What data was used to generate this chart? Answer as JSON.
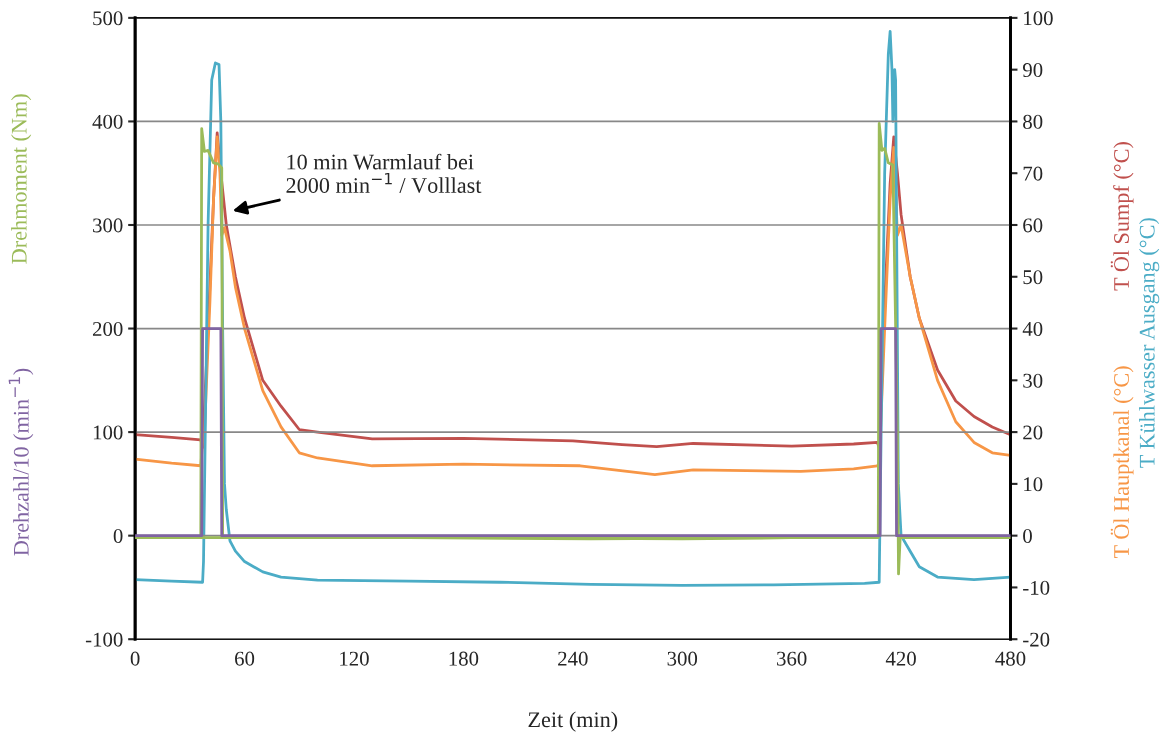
{
  "chart_data": {
    "type": "line",
    "xlabel": "Zeit (min)",
    "xlim": [
      0,
      480
    ],
    "xticks": [
      0,
      60,
      120,
      180,
      240,
      300,
      360,
      420,
      480
    ],
    "ylim": [
      -100,
      500
    ],
    "yticks": [
      -100,
      0,
      100,
      200,
      300,
      400,
      500
    ],
    "y2lim": [
      -20,
      100
    ],
    "y2ticks": [
      -20,
      -10,
      0,
      10,
      20,
      30,
      40,
      50,
      60,
      70,
      80,
      90,
      100
    ],
    "grid": "y",
    "legend": false,
    "annotations": [
      {
        "text": "10 min Warmlauf bei\n2000 min$^{−1}$ / Volllast",
        "x": 52,
        "y": 313
      }
    ],
    "series": [
      {
        "name": "Drehmoment (Nm)",
        "color": "#9bbb59",
        "x": [
          0,
          100,
          200,
          300,
          360,
          36,
          36.5,
          38,
          40,
          43,
          45.5,
          47.5,
          48,
          60,
          150,
          250,
          350,
          407.5,
          408,
          409.5,
          411,
          413,
          415.5,
          418,
          418.6,
          419.5,
          420.5,
          440,
          480
        ],
        "values": [
          -2,
          -2,
          -2,
          -3,
          -2,
          -2,
          393,
          371,
          372,
          360,
          359,
          355,
          -2,
          -2,
          -2,
          -3,
          -2,
          -2,
          398,
          372,
          374,
          360,
          358,
          100,
          -37,
          -2,
          -2,
          -2,
          -2
        ]
      },
      {
        "name": "Drehzahl/10 (min$^{−1}$)",
        "color": "#8064a2",
        "x": [
          0,
          36.5,
          37,
          47,
          47.5,
          408.5,
          409,
          417,
          417.5,
          480
        ],
        "values": [
          0,
          0,
          200,
          200,
          0,
          0,
          200,
          200,
          0,
          0
        ]
      },
      {
        "name": "T Öl Sumpf (°C)",
        "color": "#c0504d",
        "axis": "y2",
        "x": [
          0,
          20,
          36,
          37,
          40,
          43,
          45,
          47,
          50,
          55,
          60,
          70,
          80,
          90,
          100,
          130,
          180,
          240,
          267,
          286,
          306,
          360,
          394,
          407,
          408,
          411,
          414,
          416,
          418,
          420,
          425,
          430,
          440,
          450,
          460,
          470,
          480
        ],
        "values": [
          19.5,
          19,
          18.5,
          17,
          40,
          65,
          77.8,
          70,
          60,
          50,
          42,
          30,
          25,
          20.5,
          20,
          18.7,
          18.8,
          18.3,
          17.6,
          17.2,
          17.8,
          17.3,
          17.7,
          18,
          17,
          45,
          68,
          77,
          70,
          62,
          50,
          42,
          32,
          26,
          23,
          21,
          19.5
        ]
      },
      {
        "name": "T Öl Hauptkanal (°C)",
        "color": "#f79646",
        "axis": "y2",
        "x": [
          0,
          20,
          36,
          37,
          38,
          41,
          43,
          45,
          46.5,
          47.5,
          49,
          52,
          55,
          60,
          70,
          80,
          90,
          100,
          130,
          180,
          244,
          285,
          306,
          365,
          394,
          407,
          408,
          411,
          414,
          416,
          418,
          420,
          425,
          430,
          440,
          450,
          460,
          470,
          480
        ],
        "values": [
          14.8,
          14,
          13.5,
          18,
          20,
          45,
          65,
          77,
          70,
          58,
          59.5,
          55,
          48,
          40,
          28,
          21,
          16,
          15,
          13.5,
          13.8,
          13.5,
          11.8,
          12.7,
          12.4,
          12.9,
          13.5,
          14,
          40,
          65,
          75,
          58,
          60,
          50,
          42,
          30,
          22,
          18,
          16,
          15.5
        ]
      },
      {
        "name": "T Kühlwasser Ausgang (°C)",
        "color": "#4bacc6",
        "axis": "y2",
        "x": [
          0,
          20,
          37,
          37.5,
          40,
          42,
          44,
          46,
          47,
          48,
          49,
          50,
          52,
          55,
          60,
          70,
          80,
          100,
          150,
          200,
          250,
          300,
          350,
          400,
          408,
          408.5,
          411,
          413,
          414,
          415,
          415.5,
          416.5,
          417,
          418.5,
          420,
          425,
          430,
          440,
          460,
          480
        ],
        "values": [
          -8.5,
          -8.8,
          -9,
          -5,
          60,
          88,
          91.3,
          91,
          80,
          40,
          10,
          5,
          -1,
          -3,
          -5,
          -7,
          -8,
          -8.6,
          -8.8,
          -9,
          -9.4,
          -9.6,
          -9.5,
          -9.2,
          -9,
          5,
          70,
          93,
          97.4,
          90,
          80,
          90,
          88,
          10,
          0,
          -3,
          -6,
          -8,
          -8.5,
          -8
        ]
      }
    ]
  }
}
